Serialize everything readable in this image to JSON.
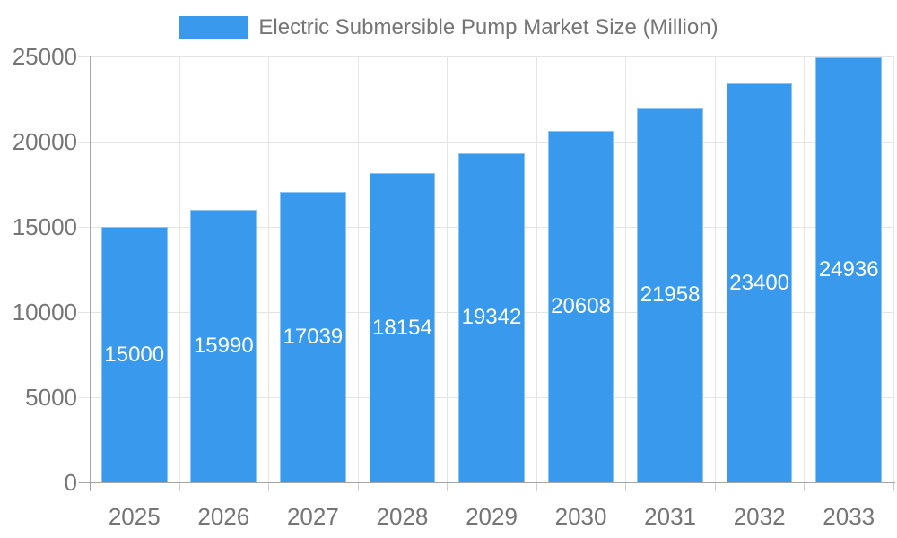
{
  "chart": {
    "legend": {
      "label": "Electric Submersible Pump Market Size (Million)"
    }
  },
  "colors": {
    "bar": "#3999EC",
    "bar_border": "#8CC4F4",
    "grid": "#E5E5E5",
    "axis": "#A5A5A5",
    "tick": "#CFCFCF",
    "axis_text": "#757575",
    "value_text": "#FFFFFF",
    "background": "#FFFFFF"
  },
  "chart_data": {
    "type": "bar",
    "title": "Electric Submersible Pump Market Size (Million)",
    "categories": [
      "2025",
      "2026",
      "2027",
      "2028",
      "2029",
      "2030",
      "2031",
      "2032",
      "2033"
    ],
    "series": [
      {
        "name": "Electric Submersible Pump Market Size (Million)",
        "values": [
          15000,
          15990,
          17039,
          18154,
          19342,
          20608,
          21958,
          23400,
          24936
        ]
      }
    ],
    "xlabel": "",
    "ylabel": "",
    "ylim": [
      0,
      25000
    ],
    "yticks": [
      0,
      5000,
      10000,
      15000,
      20000,
      25000
    ],
    "grid": true,
    "legend_position": "top",
    "value_label_position": "inside-center"
  }
}
